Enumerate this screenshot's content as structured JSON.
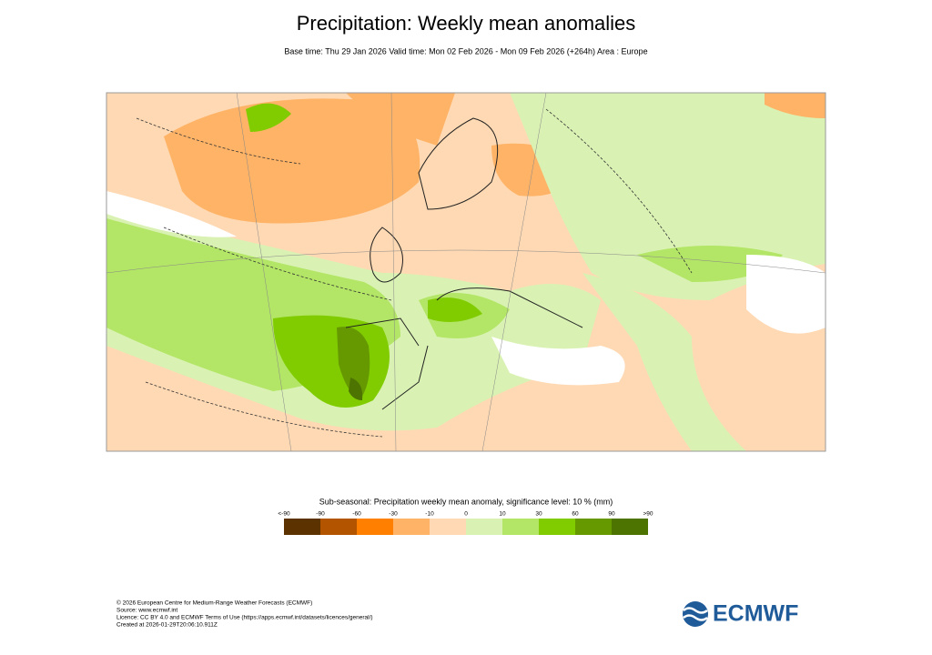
{
  "header": {
    "title": "Precipitation: Weekly mean anomalies",
    "subtitle": "Base time: Thu 29 Jan 2026 Valid time: Mon 02 Feb 2026 - Mon 09 Feb 2026 (+264h) Area : Europe"
  },
  "legend": {
    "title": "Sub-seasonal: Precipitation weekly mean anomaly, significance level: 10 % (mm)",
    "labels": [
      "<-90",
      "-90",
      "-60",
      "-30",
      "-10",
      "0",
      "10",
      "30",
      "60",
      "90",
      ">90"
    ],
    "colors": [
      "#5c3300",
      "#b35500",
      "#ff8000",
      "#ffb366",
      "#ffd9b3",
      "#d9f2b3",
      "#b3e666",
      "#80cc00",
      "#669900",
      "#4d7300"
    ]
  },
  "footer": {
    "lines": [
      "© 2026 European Centre for Medium-Range Weather Forecasts (ECMWF)",
      "Source: www.ecmwf.int",
      "Licence: CC BY 4.0 and ECMWF Terms of Use (https://apps.ecmwf.int/datasets/licences/general/)",
      "Created at 2026-01-29T20:06:10.911Z"
    ],
    "logo": "ECMWF"
  }
}
